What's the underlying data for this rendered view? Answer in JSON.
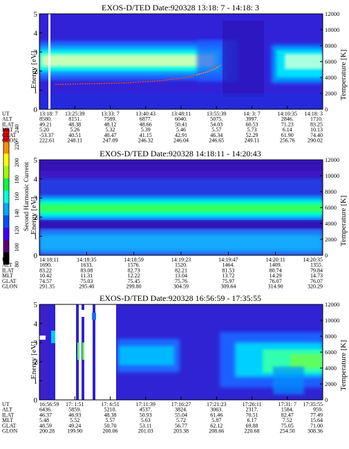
{
  "colorbar": {
    "label": "Second Harmonic Current",
    "ticks": [
      "80",
      "100",
      "120",
      "140",
      "160",
      "180",
      "200",
      "220",
      "240"
    ],
    "colors": [
      "#000000",
      "#5a0079",
      "#3c00ff",
      "#0050ff",
      "#00a8ff",
      "#00ffd8",
      "#00ff40",
      "#a0ff00",
      "#ffff00",
      "#ff9000",
      "#ff0000"
    ]
  },
  "panels": [
    {
      "title": "EXOS-D/TED   Date:920328  13:18: 7 - 14:18: 3",
      "ylabel": "Energy [eV]",
      "y2label": "Temperature [K]",
      "yticks": [
        "0",
        "1",
        "2",
        "3",
        "4",
        "5"
      ],
      "y2ticks": [
        "0",
        "2000",
        "4000",
        "6000",
        "8000",
        "10000",
        "12000"
      ],
      "row_labels": [
        "UT",
        "ALT",
        "ILAT",
        "MLT",
        "GLAT",
        "GLON"
      ],
      "columns": [
        [
          "13:18: 7",
          "8580.",
          "49.21",
          "5.20",
          "-53.37",
          "222.61"
        ],
        [
          "13:25:39",
          "8151.",
          "48.38",
          "5.26",
          "40.51",
          "248.11"
        ],
        [
          "13:33: 7",
          "7589.",
          "48.12",
          "5.32",
          "40.47",
          "247.09"
        ],
        [
          "13:40:43",
          "6877.",
          "48.66",
          "5.39",
          "41.15",
          "246.32"
        ],
        [
          "13:48:11",
          "6040.",
          "50.41",
          "5.46",
          "42.91",
          "246.04"
        ],
        [
          "13:55:39",
          "5075.",
          "54.03",
          "5.57",
          "46.34",
          "246.65"
        ],
        [
          "14: 3: 7",
          "3997.",
          "60.53",
          "5.73",
          "52.29",
          "249.11"
        ],
        [
          "14:10:35",
          "2846.",
          "71.23",
          "6.14",
          "61.90",
          "256.76"
        ],
        [
          "14:18: 3",
          "1710.",
          "83.25",
          "10.13",
          "74.40",
          "290.02"
        ]
      ]
    },
    {
      "title": "EXOS-D/TED   Date:920328  14:18:11 - 14:20:43",
      "ylabel": "Energy [eV]",
      "y2label": "Temperature [K]",
      "yticks": [
        "0",
        "1",
        "2",
        "3",
        "4",
        "5"
      ],
      "y2ticks": [
        "0",
        "2000",
        "4000",
        "6000",
        "8000",
        "10000",
        "12000"
      ],
      "row_labels": [
        "UT",
        "ALT",
        "ILAT",
        "MLT",
        "GLAT",
        "GLON"
      ],
      "columns": [
        [
          "14:18:11",
          "1690.",
          "83.22",
          "10.42",
          "74.57",
          "291.35"
        ],
        [
          "14:18:35",
          "1633.",
          "83.08",
          "11.31",
          "75.03",
          "295.40"
        ],
        [
          "14:18:59",
          "1576.",
          "82.73",
          "12.22",
          "75.45",
          "299.80"
        ],
        [
          "14:19:23",
          "1520.",
          "82.21",
          "13.04",
          "75.76",
          "304.59"
        ],
        [
          "14:19:47",
          "1464.",
          "81.53",
          "13.72",
          "75.97",
          "309.64"
        ],
        [
          "14:20:11",
          "1409.",
          "80.74",
          "14.29",
          "76.07",
          "314.90"
        ],
        [
          "14:20:35",
          "1355.",
          "79.84",
          "14.73",
          "76.07",
          "320.29"
        ]
      ]
    },
    {
      "title": "EXOS-D/TED   Date:920328  16:56:59 - 17:35:55",
      "ylabel": "Energy [eV]",
      "y2label": "Temperature [K]",
      "yticks": [
        "0",
        "1",
        "2",
        "3",
        "4",
        "5"
      ],
      "y2ticks": [
        "0",
        "2000",
        "4000",
        "6000",
        "8000",
        "10000",
        "12000"
      ],
      "row_labels": [
        "UT",
        "ALT",
        "ILAT",
        "MLT",
        "GLAT",
        "GLON"
      ],
      "columns": [
        [
          "16:56:59",
          "6436.",
          "46.37",
          "5.48",
          "48.59",
          "200.28"
        ],
        [
          "17: 1:51",
          "5859.",
          "46.93",
          "5.52",
          "49.24",
          "199.90"
        ],
        [
          "17: 6:51",
          "5210.",
          "48.38",
          "5.57",
          "50.70",
          "200.06"
        ],
        [
          "17:11:39",
          "4537.",
          "50.93",
          "5.63",
          "53.11",
          "201.03"
        ],
        [
          "17:16:27",
          "3824.",
          "55.04",
          "5.72",
          "56.77",
          "203.38"
        ],
        [
          "17:21:23",
          "3063.",
          "61.46",
          "5.87",
          "62.12",
          "208.66"
        ],
        [
          "17:26:11",
          "2317.",
          "70.51",
          "6.17",
          "69.88",
          "220.68"
        ],
        [
          "17:31: 7",
          "1584.",
          "82.47",
          "7.52",
          "75.05",
          "254.50"
        ],
        [
          "17:35:55",
          "959.",
          "77.49",
          "15.64",
          "71.00",
          "308.36"
        ]
      ]
    }
  ],
  "chart_data": [
    {
      "type": "heatmap",
      "title": "EXOS-D/TED   Date:920328  13:18: 7 - 14:18: 3",
      "xlabel": "UT",
      "ylabel": "Energy [eV]",
      "y2label": "Temperature [K]",
      "ylim": [
        0,
        5
      ],
      "y2lim": [
        0,
        12000
      ],
      "bands": [
        {
          "t0": 0.0,
          "t1": 0.68,
          "e0": 1.8,
          "e1": 3.1,
          "level": "high"
        },
        {
          "t0": 0.89,
          "t1": 1.0,
          "e0": 1.5,
          "e1": 3.0,
          "level": "high"
        }
      ],
      "overlay_line": {
        "name": "",
        "t": [
          0.0,
          0.2,
          0.4,
          0.6,
          0.68
        ],
        "temperature": [
          3300,
          3400,
          3550,
          3800,
          4100
        ]
      }
    },
    {
      "type": "heatmap",
      "title": "EXOS-D/TED   Date:920328  14:18:11 - 14:20:43",
      "xlabel": "UT",
      "ylabel": "Energy [eV]",
      "y2label": "Temperature [K]",
      "ylim": [
        0,
        5
      ],
      "y2lim": [
        0,
        12000
      ],
      "bands": [
        {
          "t0": 0.0,
          "t1": 1.0,
          "e0": 1.9,
          "e1": 2.8,
          "level": "high"
        },
        {
          "t0": 0.0,
          "t1": 1.0,
          "e0": 0.0,
          "e1": 1.5,
          "level": "medium"
        }
      ]
    },
    {
      "type": "heatmap",
      "title": "EXOS-D/TED   Date:920328  16:56:59 - 17:35:55",
      "xlabel": "UT",
      "ylabel": "Energy [eV]",
      "y2label": "Temperature [K]",
      "ylim": [
        0,
        5
      ],
      "y2lim": [
        0,
        12000
      ],
      "bands": [
        {
          "t0": 0.23,
          "t1": 0.42,
          "e0": 1.6,
          "e1": 3.0,
          "level": "medium"
        },
        {
          "t0": 0.58,
          "t1": 1.0,
          "e0": 0.9,
          "e1": 3.8,
          "level": "high"
        }
      ]
    }
  ]
}
